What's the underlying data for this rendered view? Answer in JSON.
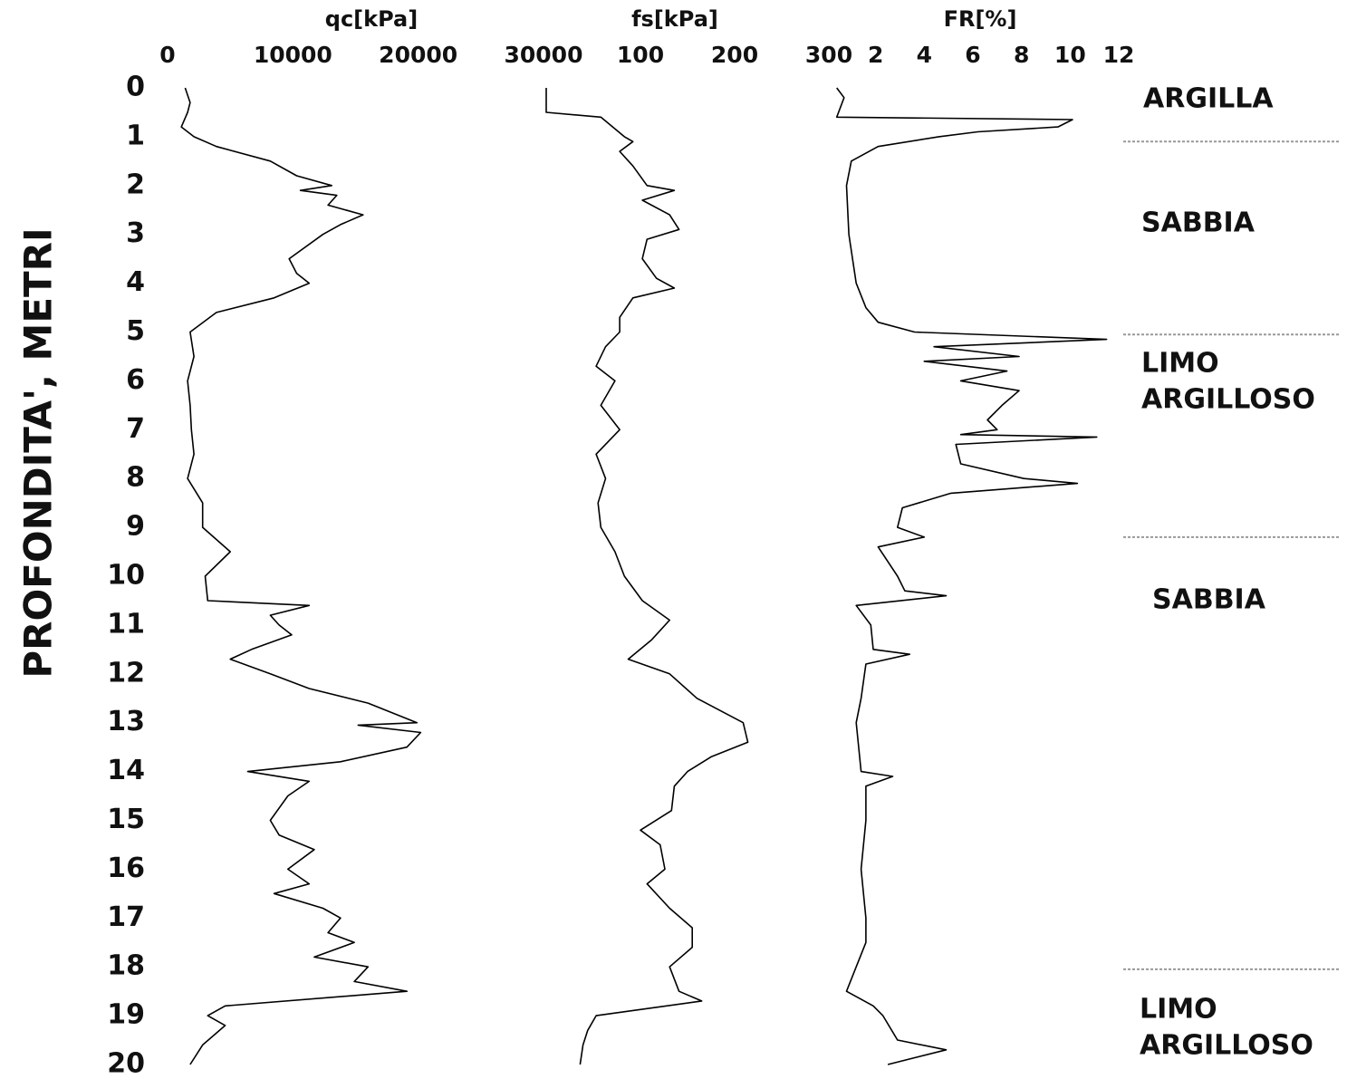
{
  "chart_data": [
    {
      "type": "line",
      "title": "qc[kPa]",
      "ylabel": "PROFONDITA', METRI",
      "xlim": [
        0,
        30000
      ],
      "xticks": [
        0,
        10000,
        20000,
        30000
      ],
      "ylim": [
        0,
        20
      ],
      "yticks": [
        0,
        1,
        2,
        3,
        4,
        5,
        6,
        7,
        8,
        9,
        10,
        11,
        12,
        13,
        14,
        15,
        16,
        17,
        18,
        19,
        20
      ],
      "color": "#000000",
      "depths": [
        0,
        0.3,
        0.5,
        0.8,
        1.0,
        1.2,
        1.5,
        1.8,
        2.0,
        2.1,
        2.2,
        2.4,
        2.6,
        2.8,
        3.0,
        3.5,
        3.8,
        4.0,
        4.3,
        4.6,
        5.0,
        5.5,
        6.0,
        6.5,
        7.0,
        7.5,
        8.0,
        8.5,
        9.0,
        9.5,
        10.0,
        10.5,
        10.6,
        10.8,
        11.0,
        11.2,
        11.5,
        11.7,
        12.0,
        12.3,
        12.6,
        13.0,
        13.05,
        13.2,
        13.5,
        13.8,
        14.0,
        14.2,
        14.5,
        15.0,
        15.3,
        15.6,
        16.0,
        16.3,
        16.5,
        16.8,
        17.0,
        17.3,
        17.5,
        17.8,
        18.0,
        18.3,
        18.5,
        18.8,
        19.0,
        19.2,
        19.6,
        20.0
      ],
      "values": [
        1400,
        1800,
        1600,
        1100,
        2100,
        3900,
        8200,
        10300,
        13100,
        10600,
        13500,
        12800,
        15600,
        13800,
        12400,
        9700,
        10300,
        11300,
        8500,
        3900,
        1800,
        2100,
        1600,
        1800,
        1900,
        2100,
        1600,
        2800,
        2800,
        5000,
        3000,
        3200,
        11300,
        8200,
        8900,
        9900,
        6700,
        5000,
        8200,
        11300,
        16000,
        19900,
        15200,
        20200,
        19100,
        13800,
        6400,
        11300,
        9600,
        8200,
        8900,
        11700,
        9600,
        11300,
        8500,
        12400,
        13800,
        12800,
        14900,
        11700,
        16000,
        14900,
        19100,
        4600,
        3200,
        4600,
        2800,
        1800
      ]
    },
    {
      "type": "line",
      "title": "fs[kPa]",
      "xlim": [
        0,
        300
      ],
      "xticks": [
        100,
        200,
        300
      ],
      "ylim": [
        0,
        20
      ],
      "color": "#000000",
      "depths": [
        0,
        0.5,
        0.6,
        1.0,
        1.1,
        1.3,
        1.6,
        2.0,
        2.1,
        2.3,
        2.6,
        2.9,
        3.1,
        3.5,
        3.9,
        4.1,
        4.3,
        4.7,
        5.0,
        5.3,
        5.7,
        6.0,
        6.5,
        7.0,
        7.5,
        8.0,
        8.5,
        9.0,
        9.5,
        10.0,
        10.5,
        10.9,
        11.3,
        11.7,
        12.0,
        12.5,
        13.0,
        13.4,
        13.7,
        14.0,
        14.3,
        14.8,
        15.2,
        15.5,
        16.0,
        16.3,
        16.8,
        17.2,
        17.6,
        18.0,
        18.5,
        18.7,
        19.0,
        19.3,
        19.6,
        20.0
      ],
      "values": [
        0,
        0,
        58,
        83,
        92,
        78,
        92,
        107,
        136,
        102,
        131,
        141,
        107,
        102,
        117,
        136,
        92,
        78,
        78,
        63,
        53,
        73,
        58,
        78,
        53,
        63,
        55,
        58,
        73,
        83,
        102,
        131,
        112,
        87,
        131,
        160,
        209,
        214,
        175,
        150,
        136,
        133,
        100,
        121,
        126,
        107,
        131,
        155,
        155,
        131,
        141,
        165,
        53,
        44,
        39,
        36
      ]
    },
    {
      "type": "line",
      "title": "FR[%]",
      "xlim": [
        0,
        12
      ],
      "xticks": [
        2,
        4,
        6,
        8,
        10,
        12
      ],
      "ylim": [
        0,
        20
      ],
      "color": "#000000",
      "depths": [
        0,
        0.2,
        0.6,
        0.65,
        0.8,
        0.9,
        1.0,
        1.2,
        1.5,
        2.0,
        3.0,
        4.0,
        4.5,
        4.8,
        5.0,
        5.15,
        5.3,
        5.5,
        5.6,
        5.8,
        6.0,
        6.2,
        6.5,
        6.8,
        7.0,
        7.1,
        7.15,
        7.3,
        7.7,
        8.0,
        8.1,
        8.3,
        8.6,
        9.0,
        9.2,
        9.4,
        10.0,
        10.3,
        10.4,
        10.6,
        11.0,
        11.5,
        11.6,
        11.8,
        12.5,
        13.0,
        14.0,
        14.1,
        14.3,
        15,
        16,
        17,
        17.5,
        18,
        18.5,
        18.8,
        19.0,
        19.5,
        19.7,
        20.0
      ],
      "values": [
        0.4,
        0.7,
        0.4,
        10.1,
        9.5,
        6.2,
        4.6,
        2.1,
        1.0,
        0.8,
        0.9,
        1.2,
        1.6,
        2.1,
        3.6,
        11.5,
        4.4,
        7.9,
        4.0,
        7.4,
        5.5,
        7.9,
        7.2,
        6.6,
        7.0,
        5.5,
        11.1,
        5.3,
        5.5,
        8.1,
        10.3,
        5.1,
        3.1,
        2.9,
        4.0,
        2.1,
        2.9,
        3.2,
        4.9,
        1.2,
        1.8,
        1.9,
        3.4,
        1.6,
        1.4,
        1.2,
        1.4,
        2.7,
        1.6,
        1.6,
        1.4,
        1.6,
        1.6,
        1.2,
        0.8,
        1.9,
        2.3,
        2.9,
        4.9,
        2.5
      ],
      "annotations": [
        "ARGILLA",
        "SABBIA",
        "LIMO",
        "ARGILLOSO",
        "SABBIA",
        "LIMO",
        "ARGILLOSO"
      ],
      "layer_boundaries": [
        1.1,
        5.05,
        9.2,
        18.05
      ]
    }
  ]
}
